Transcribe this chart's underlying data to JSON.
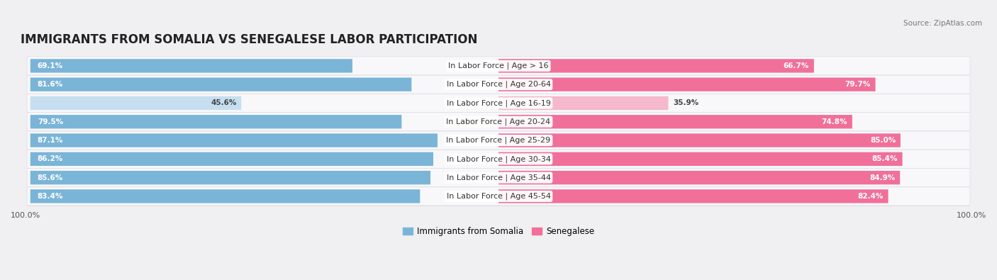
{
  "title": "IMMIGRANTS FROM SOMALIA VS SENEGALESE LABOR PARTICIPATION",
  "source": "Source: ZipAtlas.com",
  "categories": [
    "In Labor Force | Age > 16",
    "In Labor Force | Age 20-64",
    "In Labor Force | Age 16-19",
    "In Labor Force | Age 20-24",
    "In Labor Force | Age 25-29",
    "In Labor Force | Age 30-34",
    "In Labor Force | Age 35-44",
    "In Labor Force | Age 45-54"
  ],
  "somalia_values": [
    69.1,
    81.6,
    45.6,
    79.5,
    87.1,
    86.2,
    85.6,
    83.4
  ],
  "senegal_values": [
    66.7,
    79.7,
    35.9,
    74.8,
    85.0,
    85.4,
    84.9,
    82.4
  ],
  "somalia_color": "#7ab5d8",
  "somalia_color_light": "#c5dff0",
  "senegal_color": "#f07099",
  "senegal_color_light": "#f5b8cc",
  "bg_color": "#f0f0f2",
  "row_bg_color": "#f8f8fa",
  "row_border_color": "#e0e0e6",
  "legend_somalia": "Immigrants from Somalia",
  "legend_senegal": "Senegalese",
  "title_fontsize": 12,
  "label_fontsize": 8,
  "value_fontsize": 7.5,
  "axis_max": 100.0,
  "low_threshold": 60
}
